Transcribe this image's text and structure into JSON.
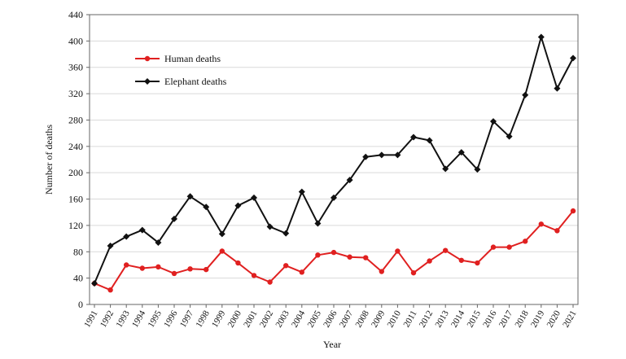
{
  "chart_data": {
    "type": "line",
    "title": "",
    "xlabel": "Year",
    "ylabel": "Number of deaths",
    "ylim": [
      0,
      440
    ],
    "yticks": [
      0,
      40,
      80,
      120,
      160,
      200,
      240,
      280,
      320,
      360,
      400,
      440
    ],
    "grid": "horizontal",
    "legend_position": "top-left",
    "categories": [
      "1991",
      "1992",
      "1993",
      "1994",
      "1995",
      "1996",
      "1997",
      "1998",
      "1999",
      "2000",
      "2001",
      "2002",
      "2003",
      "2004",
      "2005",
      "2006",
      "2007",
      "2008",
      "2009",
      "2010",
      "2011",
      "2012",
      "2013",
      "2014",
      "2015",
      "2016",
      "2017",
      "2018",
      "2019",
      "2020",
      "2021"
    ],
    "series": [
      {
        "name": "Human deaths",
        "color": "#e02020",
        "marker": "circle",
        "values": [
          32,
          22,
          60,
          55,
          57,
          47,
          54,
          53,
          81,
          63,
          44,
          34,
          59,
          49,
          75,
          79,
          72,
          71,
          50,
          81,
          48,
          66,
          82,
          67,
          63,
          87,
          87,
          96,
          122,
          112,
          142
        ]
      },
      {
        "name": "Elephant deaths",
        "color": "#111111",
        "marker": "diamond",
        "values": [
          32,
          89,
          103,
          113,
          94,
          130,
          164,
          148,
          107,
          150,
          162,
          118,
          108,
          171,
          123,
          162,
          189,
          224,
          227,
          227,
          254,
          249,
          206,
          231,
          205,
          278,
          255,
          318,
          406,
          328,
          374
        ]
      }
    ]
  }
}
